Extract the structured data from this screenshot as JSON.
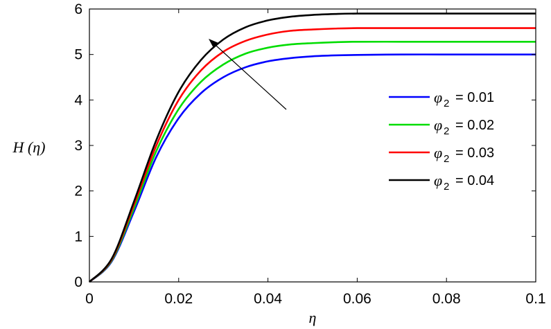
{
  "chart_data": {
    "type": "line",
    "title": "",
    "xlabel": "η",
    "ylabel": "H (η)",
    "xlim": [
      0,
      0.1
    ],
    "ylim": [
      0,
      6
    ],
    "x_ticks": [
      "0",
      "0.02",
      "0.04",
      "0.06",
      "0.08",
      "0.1"
    ],
    "y_ticks": [
      "0",
      "1",
      "2",
      "3",
      "4",
      "5",
      "6"
    ],
    "grid": false,
    "legend_position": "right",
    "annotation": "arrow pointing toward increasing φ2",
    "x": [
      0,
      0.005,
      0.01,
      0.015,
      0.02,
      0.025,
      0.03,
      0.035,
      0.04,
      0.045,
      0.05,
      0.055,
      0.06,
      0.07,
      0.08,
      0.09,
      0.1
    ],
    "series": [
      {
        "name": "φ2 = 0.01",
        "legend_symbol": "φ",
        "legend_sub": "2",
        "legend_value": "= 0.01",
        "color": "#0000ff",
        "values": [
          0,
          0.45,
          1.55,
          2.75,
          3.6,
          4.15,
          4.5,
          4.72,
          4.85,
          4.92,
          4.96,
          4.98,
          4.99,
          5.0,
          5.0,
          5.0,
          5.0
        ]
      },
      {
        "name": "φ2 = 0.02",
        "legend_symbol": "φ",
        "legend_sub": "2",
        "legend_value": "= 0.02",
        "color": "#00dd00",
        "values": [
          0,
          0.47,
          1.62,
          2.88,
          3.8,
          4.4,
          4.78,
          5.02,
          5.15,
          5.22,
          5.25,
          5.27,
          5.28,
          5.28,
          5.28,
          5.28,
          5.28
        ]
      },
      {
        "name": "φ2 = 0.03",
        "legend_symbol": "φ",
        "legend_sub": "2",
        "legend_value": "= 0.03",
        "color": "#ff0000",
        "values": [
          0,
          0.49,
          1.7,
          3.0,
          4.0,
          4.65,
          5.06,
          5.3,
          5.44,
          5.52,
          5.55,
          5.57,
          5.58,
          5.58,
          5.58,
          5.58,
          5.58
        ]
      },
      {
        "name": "φ2 = 0.04",
        "legend_symbol": "φ",
        "legend_sub": "2",
        "legend_value": "= 0.04",
        "color": "#000000",
        "values": [
          0,
          0.51,
          1.77,
          3.12,
          4.18,
          4.88,
          5.33,
          5.6,
          5.75,
          5.83,
          5.87,
          5.89,
          5.9,
          5.9,
          5.9,
          5.9,
          5.9
        ]
      }
    ]
  }
}
